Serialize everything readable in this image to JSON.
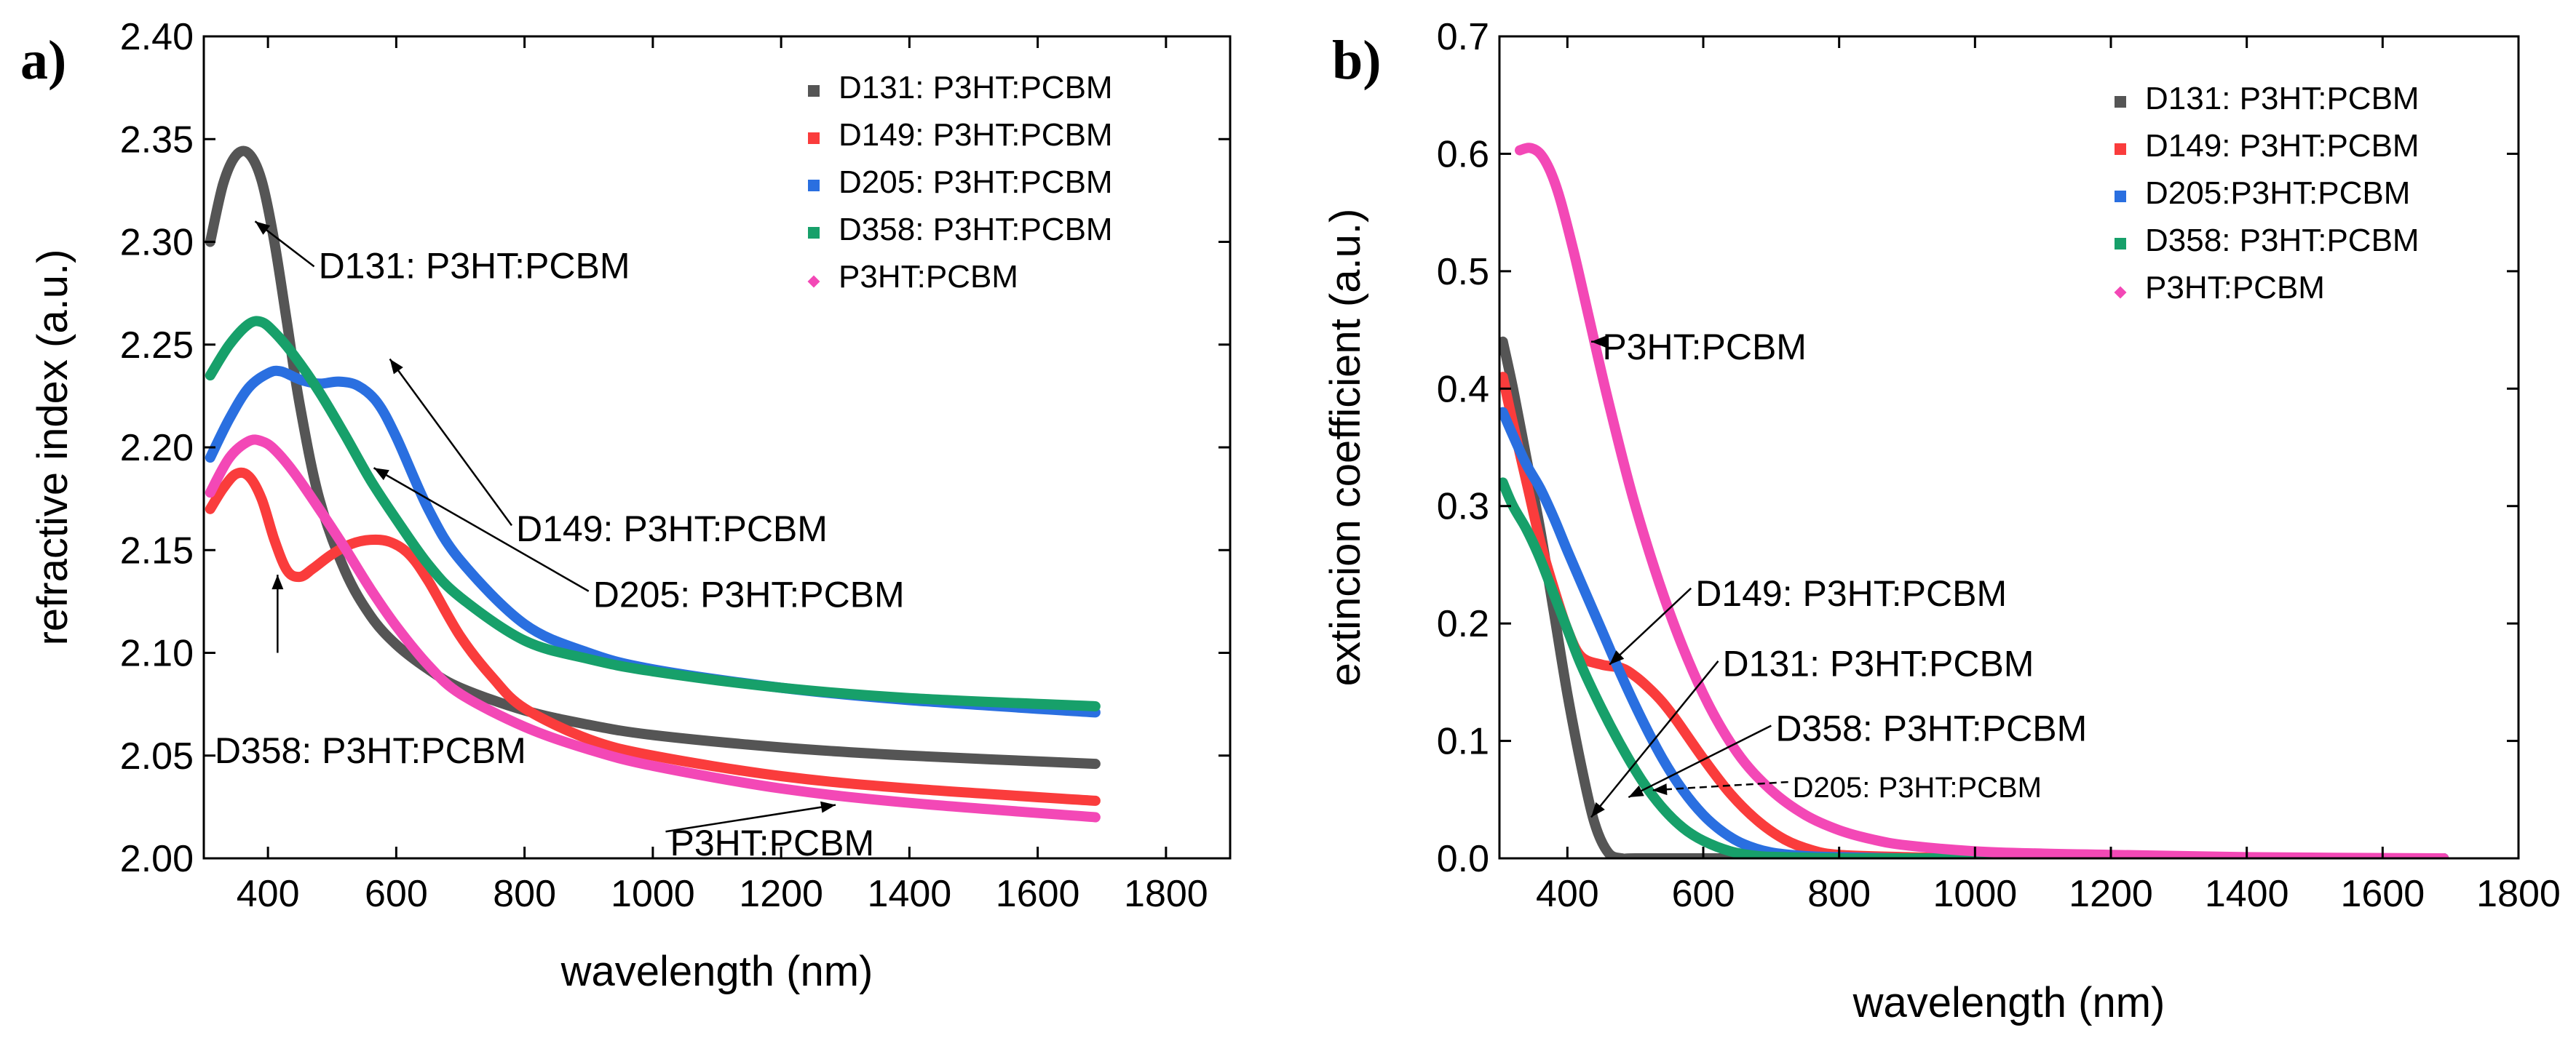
{
  "chart_data": [
    {
      "type": "line",
      "panel_label": "a)",
      "xlabel": "wavelength (nm)",
      "ylabel": "refractive index (a.u.)",
      "xlim": [
        300,
        1900
      ],
      "ylim": [
        2.0,
        2.4
      ],
      "xticks": [
        400,
        600,
        800,
        1000,
        1200,
        1400,
        1600,
        1800
      ],
      "yticks": [
        2.0,
        2.05,
        2.1,
        2.15,
        2.2,
        2.25,
        2.3,
        2.35,
        2.4
      ],
      "xtick_labels": [
        "400",
        "600",
        "800",
        "1000",
        "1200",
        "1400",
        "1600",
        "1800"
      ],
      "ytick_labels": [
        "2.00",
        "2.05",
        "2.10",
        "2.15",
        "2.20",
        "2.25",
        "2.30",
        "2.35",
        "2.40"
      ],
      "legend_position": "top-right",
      "legend": [
        "D131: P3HT:PCBM",
        "D149: P3HT:PCBM",
        "D205: P3HT:PCBM",
        "D358: P3HT:PCBM",
        " P3HT:PCBM"
      ],
      "series": [
        {
          "name": "D131: P3HT:PCBM",
          "color": "#555555",
          "x": [
            310,
            330,
            350,
            370,
            390,
            410,
            430,
            450,
            480,
            520,
            560,
            600,
            650,
            700,
            800,
            900,
            1000,
            1200,
            1400,
            1690
          ],
          "y": [
            2.3,
            2.328,
            2.342,
            2.343,
            2.33,
            2.3,
            2.26,
            2.22,
            2.175,
            2.14,
            2.118,
            2.104,
            2.092,
            2.083,
            2.072,
            2.065,
            2.06,
            2.054,
            2.05,
            2.046
          ]
        },
        {
          "name": "D149: P3HT:PCBM",
          "color": "#fa3c3c",
          "x": [
            310,
            330,
            350,
            370,
            390,
            410,
            430,
            450,
            470,
            500,
            530,
            560,
            590,
            620,
            650,
            700,
            750,
            800,
            900,
            1000,
            1200,
            1400,
            1690
          ],
          "y": [
            2.17,
            2.18,
            2.187,
            2.186,
            2.175,
            2.155,
            2.14,
            2.137,
            2.141,
            2.148,
            2.153,
            2.155,
            2.154,
            2.148,
            2.135,
            2.108,
            2.088,
            2.073,
            2.058,
            2.05,
            2.04,
            2.034,
            2.028
          ]
        },
        {
          "name": "D205: P3HT:PCBM",
          "color": "#2a6fe0",
          "x": [
            310,
            340,
            370,
            400,
            420,
            450,
            480,
            510,
            540,
            570,
            600,
            650,
            700,
            800,
            900,
            1000,
            1200,
            1400,
            1690
          ],
          "y": [
            2.195,
            2.214,
            2.229,
            2.236,
            2.237,
            2.233,
            2.231,
            2.232,
            2.23,
            2.222,
            2.205,
            2.17,
            2.145,
            2.114,
            2.1,
            2.092,
            2.083,
            2.077,
            2.071
          ]
        },
        {
          "name": "D358: P3HT:PCBM",
          "color": "#17a06a",
          "x": [
            310,
            340,
            370,
            390,
            410,
            440,
            480,
            520,
            560,
            600,
            650,
            700,
            800,
            900,
            1000,
            1200,
            1400,
            1690
          ],
          "y": [
            2.235,
            2.25,
            2.26,
            2.261,
            2.256,
            2.245,
            2.227,
            2.206,
            2.184,
            2.165,
            2.143,
            2.127,
            2.106,
            2.097,
            2.091,
            2.083,
            2.078,
            2.074
          ]
        },
        {
          "name": " P3HT:PCBM",
          "color": "#f348b6",
          "x": [
            310,
            340,
            370,
            390,
            410,
            440,
            480,
            520,
            560,
            600,
            650,
            700,
            800,
            900,
            1000,
            1200,
            1400,
            1690
          ],
          "y": [
            2.178,
            2.195,
            2.203,
            2.203,
            2.199,
            2.188,
            2.17,
            2.151,
            2.131,
            2.113,
            2.094,
            2.08,
            2.064,
            2.053,
            2.045,
            2.034,
            2.027,
            2.02
          ]
        }
      ],
      "annotations": [
        {
          "text": "D131: P3HT:PCBM",
          "at": [
            380,
            2.31
          ],
          "label_at": [
            472,
            2.288
          ],
          "arrow_from": [
            472,
            2.288
          ]
        },
        {
          "text": "D149: P3HT:PCBM",
          "at": [
            590,
            2.243
          ],
          "label_at": [
            780,
            2.16
          ],
          "arrow_from": [
            780,
            2.162
          ]
        },
        {
          "text": "D205: P3HT:PCBM",
          "at": [
            565,
            2.19
          ],
          "label_at": [
            900,
            2.128
          ],
          "arrow_from": [
            900,
            2.13
          ]
        },
        {
          "text": "D358: P3HT:PCBM",
          "at": [
            415,
            2.138
          ],
          "label_at": [
            310,
            2.052
          ],
          "arrow_from": [
            415,
            2.1
          ]
        },
        {
          "text": "P3HT:PCBM",
          "at": [
            1285,
            2.026
          ],
          "label_at": [
            1020,
            2.007
          ],
          "arrow_from": [
            1020,
            2.013
          ]
        }
      ]
    },
    {
      "type": "line",
      "panel_label": "b)",
      "xlabel": "wavelength (nm)",
      "ylabel": "extincion coefficient (a.u.)",
      "xlim": [
        300,
        1800
      ],
      "ylim": [
        0.0,
        0.7
      ],
      "xticks": [
        400,
        600,
        800,
        1000,
        1200,
        1400,
        1600,
        1800
      ],
      "yticks": [
        0.0,
        0.1,
        0.2,
        0.3,
        0.4,
        0.5,
        0.6,
        0.7
      ],
      "xtick_labels": [
        "400",
        "600",
        "800",
        "1000",
        "1200",
        "1400",
        "1600",
        "1800"
      ],
      "ytick_labels": [
        "0.0",
        "0.1",
        "0.2",
        "0.3",
        "0.4",
        "0.5",
        "0.6",
        "0.7"
      ],
      "legend_position": "top-right",
      "legend": [
        "D131: P3HT:PCBM",
        "D149: P3HT:PCBM",
        "D205:P3HT:PCBM",
        "D358: P3HT:PCBM",
        " P3HT:PCBM"
      ],
      "series": [
        {
          "name": "D131: P3HT:PCBM",
          "color": "#555555",
          "x": [
            305,
            320,
            340,
            360,
            380,
            400,
            420,
            440,
            460,
            480,
            500,
            600,
            800,
            1000,
            1200,
            1400,
            1690
          ],
          "y": [
            0.44,
            0.4,
            0.34,
            0.28,
            0.21,
            0.14,
            0.08,
            0.03,
            0.005,
            0.0,
            0.0,
            0.0,
            0.0,
            0.0,
            0.0,
            0.0,
            0.0
          ]
        },
        {
          "name": "D149: P3HT:PCBM",
          "color": "#fa3c3c",
          "x": [
            305,
            320,
            340,
            360,
            380,
            400,
            420,
            450,
            480,
            500,
            520,
            540,
            560,
            600,
            640,
            680,
            720,
            760,
            800,
            900,
            1000,
            1200,
            1400,
            1690
          ],
          "y": [
            0.41,
            0.37,
            0.32,
            0.27,
            0.23,
            0.195,
            0.172,
            0.165,
            0.162,
            0.155,
            0.145,
            0.133,
            0.118,
            0.085,
            0.055,
            0.032,
            0.016,
            0.007,
            0.003,
            0.001,
            0.0,
            0.0,
            0.0,
            0.0
          ]
        },
        {
          "name": "D205:P3HT:PCBM",
          "color": "#2a6fe0",
          "x": [
            305,
            320,
            340,
            360,
            380,
            400,
            420,
            450,
            480,
            510,
            540,
            570,
            600,
            630,
            660,
            700,
            750,
            800,
            900,
            1000,
            1200,
            1400,
            1690
          ],
          "y": [
            0.38,
            0.36,
            0.335,
            0.315,
            0.29,
            0.262,
            0.235,
            0.195,
            0.155,
            0.118,
            0.085,
            0.058,
            0.037,
            0.022,
            0.012,
            0.005,
            0.002,
            0.001,
            0.0,
            0.0,
            0.0,
            0.0,
            0.0
          ]
        },
        {
          "name": "D358: P3HT:PCBM",
          "color": "#17a06a",
          "x": [
            305,
            320,
            340,
            360,
            380,
            400,
            420,
            450,
            480,
            510,
            540,
            570,
            600,
            640,
            680,
            720,
            800,
            900,
            1000,
            1200,
            1400,
            1690
          ],
          "y": [
            0.32,
            0.3,
            0.28,
            0.255,
            0.225,
            0.195,
            0.165,
            0.128,
            0.095,
            0.066,
            0.043,
            0.026,
            0.015,
            0.006,
            0.002,
            0.001,
            0.0,
            0.0,
            0.0,
            0.0,
            0.0,
            0.0
          ]
        },
        {
          "name": " P3HT:PCBM",
          "color": "#f348b6",
          "x": [
            330,
            345,
            360,
            375,
            390,
            410,
            430,
            460,
            500,
            550,
            600,
            650,
            700,
            750,
            800,
            850,
            900,
            1000,
            1100,
            1200,
            1400,
            1690
          ],
          "y": [
            0.603,
            0.605,
            0.6,
            0.585,
            0.56,
            0.515,
            0.465,
            0.39,
            0.3,
            0.21,
            0.14,
            0.09,
            0.058,
            0.037,
            0.024,
            0.016,
            0.011,
            0.006,
            0.004,
            0.003,
            0.001,
            0.0
          ]
        }
      ],
      "annotations": [
        {
          "text": "P3HT:PCBM",
          "at": [
            435,
            0.44
          ],
          "label_at": [
            445,
            0.435
          ],
          "arrow_from": [
            445,
            0.44
          ]
        },
        {
          "text": "D149: P3HT:PCBM",
          "at": [
            462,
            0.165
          ],
          "label_at": [
            582,
            0.225
          ],
          "arrow_from": [
            582,
            0.23
          ]
        },
        {
          "text": "D131: P3HT:PCBM",
          "at": [
            435,
            0.035
          ],
          "label_at": [
            622,
            0.165
          ],
          "arrow_from": [
            622,
            0.168
          ]
        },
        {
          "text": "D358: P3HT:PCBM",
          "at": [
            490,
            0.052
          ],
          "label_at": [
            700,
            0.11
          ],
          "arrow_from": [
            700,
            0.113
          ]
        },
        {
          "text": "D205: P3HT:PCBM",
          "at": [
            525,
            0.058
          ],
          "label_at": [
            725,
            0.062
          ],
          "arrow_from": [
            725,
            0.065
          ]
        }
      ]
    }
  ]
}
